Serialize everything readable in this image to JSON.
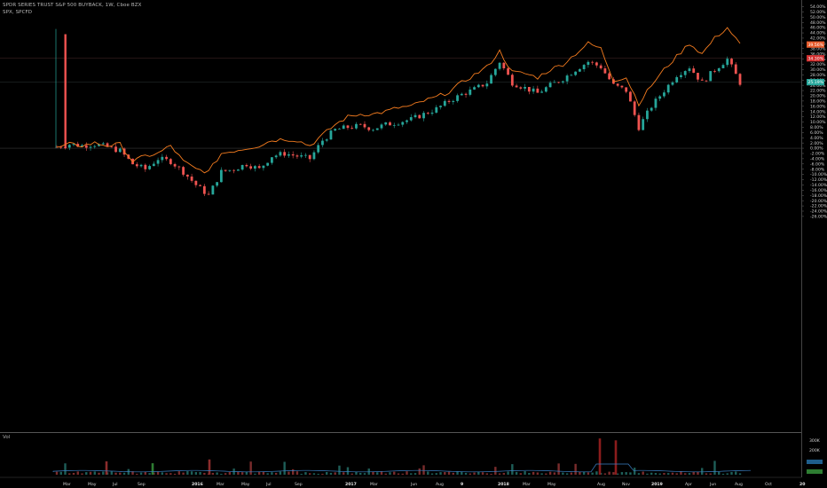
{
  "header": {
    "title": "SPDR SERIES TRUST S&P 500 BUYBACK, 1W, Cboe BZX",
    "compare": "SPX, SPCFD"
  },
  "volume_pane": {
    "label": "Vol",
    "axis_labels": [
      "300K",
      "200K"
    ]
  },
  "price_axis": {
    "labels": [
      "54.00%",
      "52.00%",
      "50.00%",
      "48.00%",
      "46.00%",
      "44.00%",
      "42.00%",
      "40.00%",
      "38.00%",
      "36.00%",
      "34.00%",
      "32.00%",
      "30.00%",
      "28.00%",
      "26.00%",
      "24.00%",
      "22.00%",
      "20.00%",
      "18.00%",
      "16.00%",
      "14.00%",
      "12.00%",
      "10.00%",
      "8.00%",
      "6.00%",
      "4.00%",
      "2.00%",
      "0.00%",
      "-2.00%",
      "-4.00%",
      "-6.00%",
      "-8.00%",
      "-10.00%",
      "-12.00%",
      "-14.00%",
      "-16.00%",
      "-18.00%",
      "-20.00%",
      "-22.00%",
      "-24.00%",
      "-26.00%"
    ],
    "tags": {
      "spx": "39.56%",
      "level": "34.30%",
      "last": "25.19%"
    }
  },
  "time_axis": [
    "Mar",
    "May",
    "Jul",
    "Sep",
    "2016",
    "Mar",
    "May",
    "Jul",
    "Sep",
    "2017",
    "Mar",
    "Jun",
    "Aug",
    "9",
    "2018",
    "Mar",
    "May",
    "Aug",
    "Nov",
    "2019",
    "Apr",
    "Jun",
    "Aug",
    "Oct",
    "20"
  ],
  "colors": {
    "up": "#26a69a",
    "down": "#ef5350",
    "spx_line": "#f57c1f",
    "background": "#000000"
  },
  "chart_data": {
    "type": "line",
    "xlabel": "",
    "ylabel": "",
    "ylim": [
      -27,
      55
    ],
    "grid": false,
    "series": [
      {
        "name": "SPDR SERIES TRUST S&P 500 BUYBACK",
        "style": "candlestick",
        "x": [
          "2015-02",
          "2015-03",
          "2015-04",
          "2015-05",
          "2015-06",
          "2015-07",
          "2015-08",
          "2015-09",
          "2015-10",
          "2015-11",
          "2015-12",
          "2016-01",
          "2016-02",
          "2016-03",
          "2016-04",
          "2016-05",
          "2016-06",
          "2016-07",
          "2016-08",
          "2016-09",
          "2016-10",
          "2016-11",
          "2016-12",
          "2017-01",
          "2017-02",
          "2017-03",
          "2017-04",
          "2017-05",
          "2017-06",
          "2017-07",
          "2017-08",
          "2017-09",
          "2017-10",
          "2017-11",
          "2017-12",
          "2018-01",
          "2018-02",
          "2018-03",
          "2018-04",
          "2018-05",
          "2018-06",
          "2018-07",
          "2018-08",
          "2018-09",
          "2018-10",
          "2018-11",
          "2018-12",
          "2019-01",
          "2019-02",
          "2019-03",
          "2019-04",
          "2019-05",
          "2019-06",
          "2019-07",
          "2019-08"
        ],
        "values": [
          0.5,
          1.5,
          1.0,
          1.5,
          0.5,
          -1.0,
          -6.0,
          -8.0,
          -4.0,
          -5.0,
          -9.0,
          -14.0,
          -18.0,
          -9.0,
          -8.0,
          -6.0,
          -8.0,
          -3.0,
          -2.0,
          -3.0,
          -4.0,
          3.0,
          7.0,
          8.0,
          8.5,
          7.5,
          9.0,
          10.0,
          11.0,
          13.0,
          15.0,
          18.0,
          20.5,
          22.5,
          25.0,
          33.0,
          25.0,
          23.0,
          21.0,
          24.0,
          26.5,
          30.0,
          33.0,
          31.0,
          24.0,
          22.0,
          8.0,
          16.0,
          22.0,
          28.0,
          31.0,
          25.0,
          30.0,
          34.0,
          25.0
        ]
      },
      {
        "name": "SPX, SPCFD",
        "style": "line",
        "x": [
          "2015-02",
          "2015-03",
          "2015-04",
          "2015-05",
          "2015-06",
          "2015-07",
          "2015-08",
          "2015-09",
          "2015-10",
          "2015-11",
          "2015-12",
          "2016-01",
          "2016-02",
          "2016-03",
          "2016-04",
          "2016-05",
          "2016-06",
          "2016-07",
          "2016-08",
          "2016-09",
          "2016-10",
          "2016-11",
          "2016-12",
          "2017-01",
          "2017-02",
          "2017-03",
          "2017-04",
          "2017-05",
          "2017-06",
          "2017-07",
          "2017-08",
          "2017-09",
          "2017-10",
          "2017-11",
          "2017-12",
          "2018-01",
          "2018-02",
          "2018-03",
          "2018-04",
          "2018-05",
          "2018-06",
          "2018-07",
          "2018-08",
          "2018-09",
          "2018-10",
          "2018-11",
          "2018-12",
          "2019-01",
          "2019-02",
          "2019-03",
          "2019-04",
          "2019-05",
          "2019-06",
          "2019-07",
          "2019-08"
        ],
        "values": [
          0.0,
          1.5,
          1.0,
          2.0,
          1.0,
          1.5,
          -5.0,
          -3.0,
          -2.0,
          1.0,
          -5.0,
          -8.0,
          -9.0,
          -2.0,
          -1.0,
          0.0,
          1.0,
          3.0,
          3.5,
          3.0,
          1.0,
          5.0,
          9.0,
          12.0,
          13.0,
          13.0,
          14.0,
          15.5,
          16.0,
          18.0,
          19.5,
          21.5,
          25.0,
          28.0,
          31.0,
          37.0,
          29.0,
          28.5,
          27.0,
          30.0,
          32.0,
          36.0,
          40.0,
          38.0,
          26.0,
          27.0,
          17.0,
          24.0,
          30.0,
          35.0,
          40.0,
          36.0,
          42.0,
          46.0,
          39.56
        ]
      }
    ]
  }
}
